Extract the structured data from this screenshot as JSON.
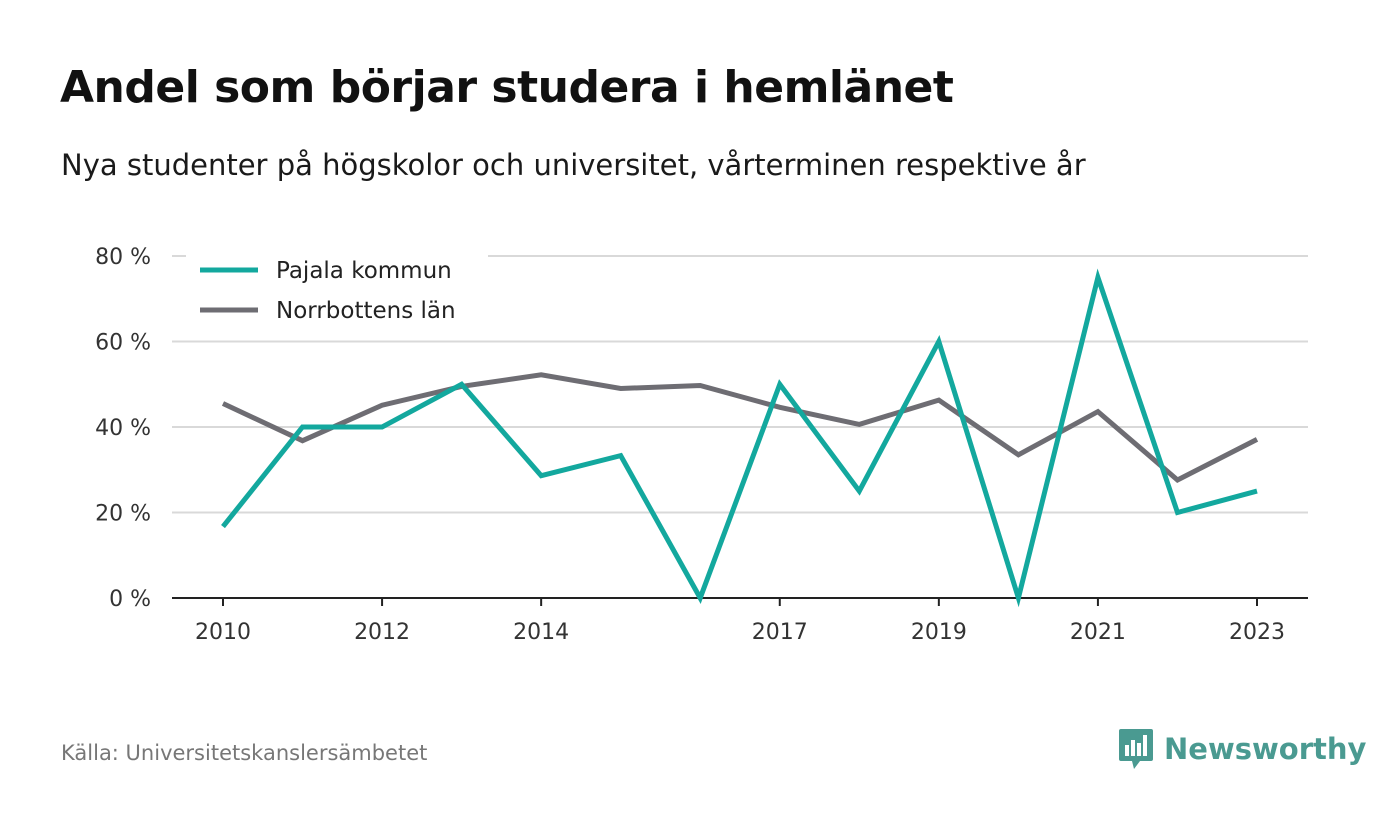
{
  "header": {
    "title": "Andel som börjar studera i hemlänet",
    "subtitle": "Nya studenter på högskolor och universitet, vårterminen respektive år"
  },
  "footer": {
    "source": "Källa: Universitetskanslersämbetet",
    "brand": "Newsworthy",
    "brand_icon": "bar-chart-speech-bubble-icon",
    "brand_color": "#4a9a91"
  },
  "chart_data": {
    "type": "line",
    "title": "Andel som börjar studera i hemlänet",
    "subtitle": "Nya studenter på högskolor och universitet, vårterminen respektive år",
    "xlabel": "",
    "ylabel": "",
    "x": [
      2010,
      2011,
      2012,
      2013,
      2014,
      2015,
      2016,
      2017,
      2018,
      2019,
      2020,
      2021,
      2022,
      2023
    ],
    "x_ticks": [
      "2010",
      "2012",
      "2014",
      "2017",
      "2019",
      "2021",
      "2023"
    ],
    "y_ticks": [
      "0 %",
      "20 %",
      "40 %",
      "60 %",
      "80 %"
    ],
    "ylim": [
      0,
      80
    ],
    "grid": true,
    "legend_position": "top-left",
    "series": [
      {
        "name": "Pajala kommun",
        "color": "#13a89e",
        "values": [
          16.7,
          40,
          40,
          50,
          28.6,
          33.3,
          0,
          50,
          25,
          60,
          0,
          75,
          20,
          25
        ]
      },
      {
        "name": "Norrbottens län",
        "color": "#6e6d73",
        "values": [
          45.5,
          36.8,
          45.1,
          49.5,
          52.2,
          49,
          49.7,
          44.6,
          40.6,
          46.3,
          33.5,
          43.6,
          27.6,
          37.1
        ]
      }
    ]
  }
}
